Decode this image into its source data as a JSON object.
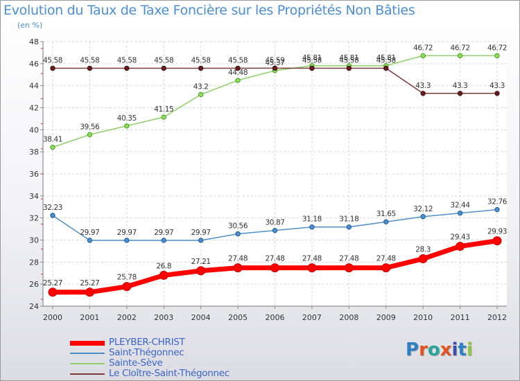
{
  "title": "Evolution du Taux de Taxe Foncière sur les Propriétés Non Bâties",
  "unit_label": "(en %)",
  "logo": {
    "text": "Proxiti",
    "letter_colors": [
      "#2f7fc4",
      "#e1541d",
      "#2aa39a",
      "#e1541d",
      "#3c4fa8",
      "#2f7fc4",
      "#8dc63f"
    ]
  },
  "chart_data": {
    "type": "line",
    "title": "Evolution du Taux de Taxe Foncière sur les Propriétés Non Bâties",
    "ylabel": "(en %)",
    "xlabel": "",
    "x": [
      "2000",
      "2001",
      "2002",
      "2003",
      "2004",
      "2005",
      "2006",
      "2007",
      "2008",
      "2009",
      "2010",
      "2011",
      "2012"
    ],
    "ylim": [
      24,
      48
    ],
    "yticks": [
      24,
      26,
      28,
      30,
      32,
      34,
      36,
      38,
      40,
      42,
      44,
      46,
      48
    ],
    "grid": true,
    "legend_position": "bottom-left",
    "series": [
      {
        "name": "PLEYBER-CHRIST",
        "color": "#ff0000",
        "values": [
          25.27,
          25.27,
          25.78,
          26.8,
          27.21,
          27.48,
          27.48,
          27.48,
          27.48,
          27.48,
          28.3,
          29.43,
          29.93
        ],
        "labels": [
          "25.27",
          "25.27",
          "25.78",
          "26.8",
          "27.21",
          "27.48",
          "27.48",
          "27.48",
          "27.48",
          "27.48",
          "28.3",
          "29.43",
          "29.93"
        ]
      },
      {
        "name": "Saint-Thégonnec",
        "color": "#4f8fc9",
        "values": [
          32.23,
          29.97,
          29.97,
          29.97,
          29.97,
          30.56,
          30.87,
          31.18,
          31.18,
          31.65,
          32.12,
          32.44,
          32.76
        ],
        "labels": [
          "32.23",
          "29.97",
          "29.97",
          "29.97",
          "29.97",
          "30.56",
          "30.87",
          "31.18",
          "31.18",
          "31.65",
          "32.12",
          "32.44",
          "32.76"
        ]
      },
      {
        "name": "Sainte-Sève",
        "color": "#8fd06a",
        "values": [
          38.41,
          39.56,
          40.35,
          41.15,
          43.2,
          44.48,
          45.37,
          45.81,
          45.81,
          45.81,
          46.72,
          46.72,
          46.72
        ],
        "labels": [
          "38.41",
          "39.56",
          "40.35",
          "41.15",
          "43.2",
          "44.48",
          "45.37",
          "45.81",
          "45.81",
          "45.81",
          "46.72",
          "46.72",
          "46.72"
        ]
      },
      {
        "name": "Le Cloître-Saint-Thégonnec",
        "color": "#7a3a3a",
        "values": [
          45.58,
          45.58,
          45.58,
          45.58,
          45.58,
          45.58,
          45.59,
          45.58,
          45.58,
          45.58,
          43.3,
          43.3,
          43.3
        ],
        "labels": [
          "45.58",
          "45.58",
          "45.58",
          "45.58",
          "45.58",
          "45.58",
          "45.59",
          "45.58",
          "45.58",
          "45.58",
          "43.3",
          "43.3",
          "43.3"
        ]
      }
    ]
  }
}
